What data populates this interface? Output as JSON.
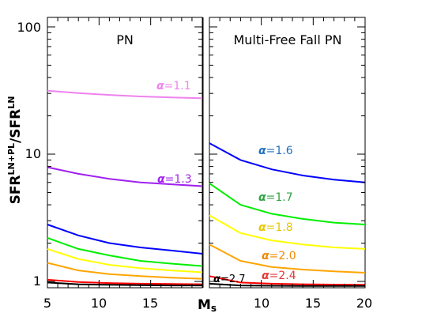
{
  "chart_data": [
    {
      "type": "line",
      "panel_title": "PN",
      "xlabel": "M",
      "xlabel_sub": "s",
      "ylabel": "SFR",
      "ylabel_sup": "LN+PL",
      "ylabel_mid": "/SFR",
      "ylabel_sup2": "LN",
      "xlim": [
        5,
        20
      ],
      "ylim": [
        0.9,
        100
      ],
      "yscale": "log",
      "xticks": [
        5,
        10,
        15
      ],
      "yticks": [
        1,
        10,
        100
      ],
      "series": [
        {
          "name": "α=1.1",
          "color": "#ee82ee",
          "x": [
            5,
            8,
            11,
            14,
            17,
            20
          ],
          "y": [
            31.5,
            30.2,
            29.2,
            28.4,
            27.9,
            27.5
          ]
        },
        {
          "name": "α=1.3",
          "color": "#a020f0",
          "x": [
            5,
            8,
            11,
            14,
            17,
            20
          ],
          "y": [
            7.9,
            7.0,
            6.4,
            6.0,
            5.8,
            5.6
          ]
        },
        {
          "name": "",
          "color": "#0000ff",
          "x": [
            5,
            8,
            11,
            14,
            17,
            20
          ],
          "y": [
            2.8,
            2.3,
            2.0,
            1.85,
            1.75,
            1.65
          ]
        },
        {
          "name": "",
          "color": "#00ee00",
          "x": [
            5,
            8,
            11,
            14,
            17,
            20
          ],
          "y": [
            2.2,
            1.8,
            1.6,
            1.45,
            1.38,
            1.32
          ]
        },
        {
          "name": "",
          "color": "#ffff00",
          "x": [
            5,
            8,
            11,
            14,
            17,
            20
          ],
          "y": [
            1.8,
            1.5,
            1.35,
            1.27,
            1.22,
            1.18
          ]
        },
        {
          "name": "",
          "color": "#ffa500",
          "x": [
            5,
            8,
            11,
            14,
            17,
            20
          ],
          "y": [
            1.4,
            1.22,
            1.14,
            1.1,
            1.07,
            1.05
          ]
        },
        {
          "name": "",
          "color": "#ff0000",
          "x": [
            5,
            8,
            11,
            14,
            17,
            20
          ],
          "y": [
            1.03,
            0.99,
            0.97,
            0.96,
            0.955,
            0.95
          ]
        },
        {
          "name": "",
          "color": "#000000",
          "x": [
            5,
            8,
            11,
            14,
            17,
            20
          ],
          "y": [
            0.98,
            0.95,
            0.94,
            0.935,
            0.93,
            0.93
          ]
        }
      ]
    },
    {
      "type": "line",
      "panel_title": "Multi-Free Fall PN",
      "xlim": [
        5,
        20
      ],
      "ylim": [
        0.9,
        100
      ],
      "yscale": "log",
      "xticks": [
        10,
        15,
        20
      ],
      "series": [
        {
          "name": "α=1.6",
          "color": "#0000ff",
          "x": [
            5,
            8,
            11,
            14,
            17,
            20
          ],
          "y": [
            12.2,
            9.0,
            7.6,
            6.8,
            6.3,
            6.0
          ]
        },
        {
          "name": "α=1.7",
          "color": "#00ee00",
          "x": [
            5,
            8,
            11,
            14,
            17,
            20
          ],
          "y": [
            5.9,
            4.0,
            3.4,
            3.1,
            2.9,
            2.8
          ]
        },
        {
          "name": "α=1.8",
          "color": "#ffff00",
          "x": [
            5,
            8,
            11,
            14,
            17,
            20
          ],
          "y": [
            3.3,
            2.4,
            2.1,
            1.95,
            1.85,
            1.8
          ]
        },
        {
          "name": "α=2.0",
          "color": "#ffa500",
          "x": [
            5,
            8,
            11,
            14,
            17,
            20
          ],
          "y": [
            1.95,
            1.45,
            1.3,
            1.24,
            1.2,
            1.17
          ]
        },
        {
          "name": "α=2.4",
          "color": "#ff0000",
          "x": [
            5,
            8,
            11,
            14,
            17,
            20
          ],
          "y": [
            1.1,
            0.98,
            0.96,
            0.95,
            0.945,
            0.94
          ]
        },
        {
          "name": "α=2.7",
          "color": "#000000",
          "x": [
            5,
            8,
            11,
            14,
            17,
            20
          ],
          "y": [
            0.96,
            0.93,
            0.925,
            0.92,
            0.92,
            0.92
          ]
        }
      ]
    }
  ],
  "labels": {
    "left": [
      {
        "alpha": "α",
        "rest": "=1.1",
        "color": "#ee82ee"
      },
      {
        "alpha": "α",
        "rest": "=1.3",
        "color": "#a020f0"
      }
    ],
    "right": [
      {
        "alpha": "α",
        "rest": "=1.6",
        "color": "#1f6fbf"
      },
      {
        "alpha": "α",
        "rest": "=1.7",
        "color": "#2ea043"
      },
      {
        "alpha": "α",
        "rest": "=1.8",
        "color": "#e6c700"
      },
      {
        "alpha": "α",
        "rest": "=2.0",
        "color": "#ee8a00"
      },
      {
        "alpha": "α",
        "rest": "=2.4",
        "color": "#e53935"
      },
      {
        "alpha": "α",
        "rest": "=2.7",
        "color": "#000000"
      }
    ]
  }
}
